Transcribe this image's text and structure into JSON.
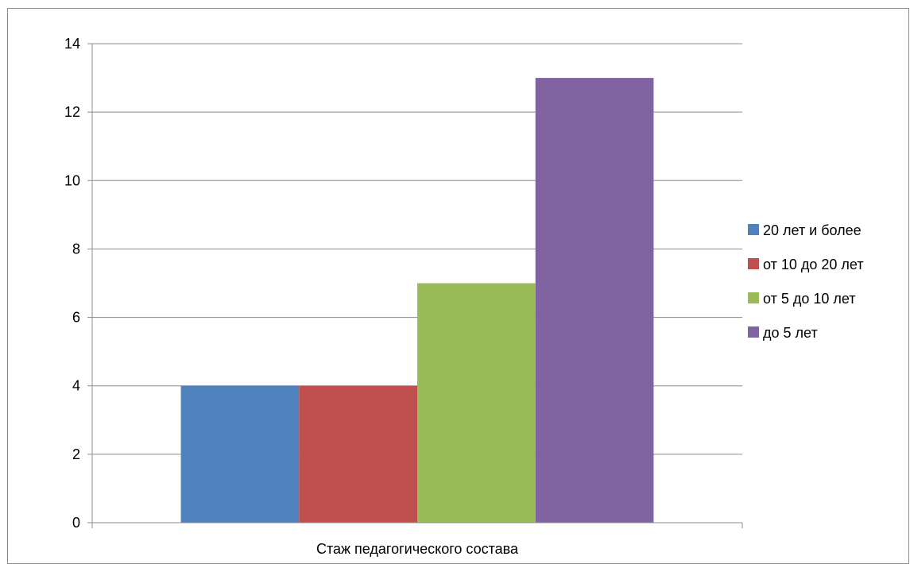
{
  "chart_data": {
    "type": "bar",
    "title": "",
    "xlabel": "",
    "ylabel": "",
    "categories": [
      "Стаж педагогического состава"
    ],
    "series": [
      {
        "name": "20 лет и более",
        "values": [
          4
        ],
        "color": "#4f81bd"
      },
      {
        "name": "от 10 до 20 лет",
        "values": [
          4
        ],
        "color": "#c0504d"
      },
      {
        "name": "от 5 до 10 лет",
        "values": [
          7
        ],
        "color": "#9bbb59"
      },
      {
        "name": "до 5 лет",
        "values": [
          13
        ],
        "color": "#8064a2"
      }
    ],
    "ylim": [
      0,
      14
    ],
    "yticks": [
      "0",
      "2",
      "4",
      "6",
      "8",
      "10",
      "12",
      "14"
    ],
    "grid": true,
    "legend_position": "right",
    "colors": {
      "gridline": "#8c8c8c",
      "axis": "#8c8c8c",
      "frame": "#8c8c8c"
    }
  }
}
